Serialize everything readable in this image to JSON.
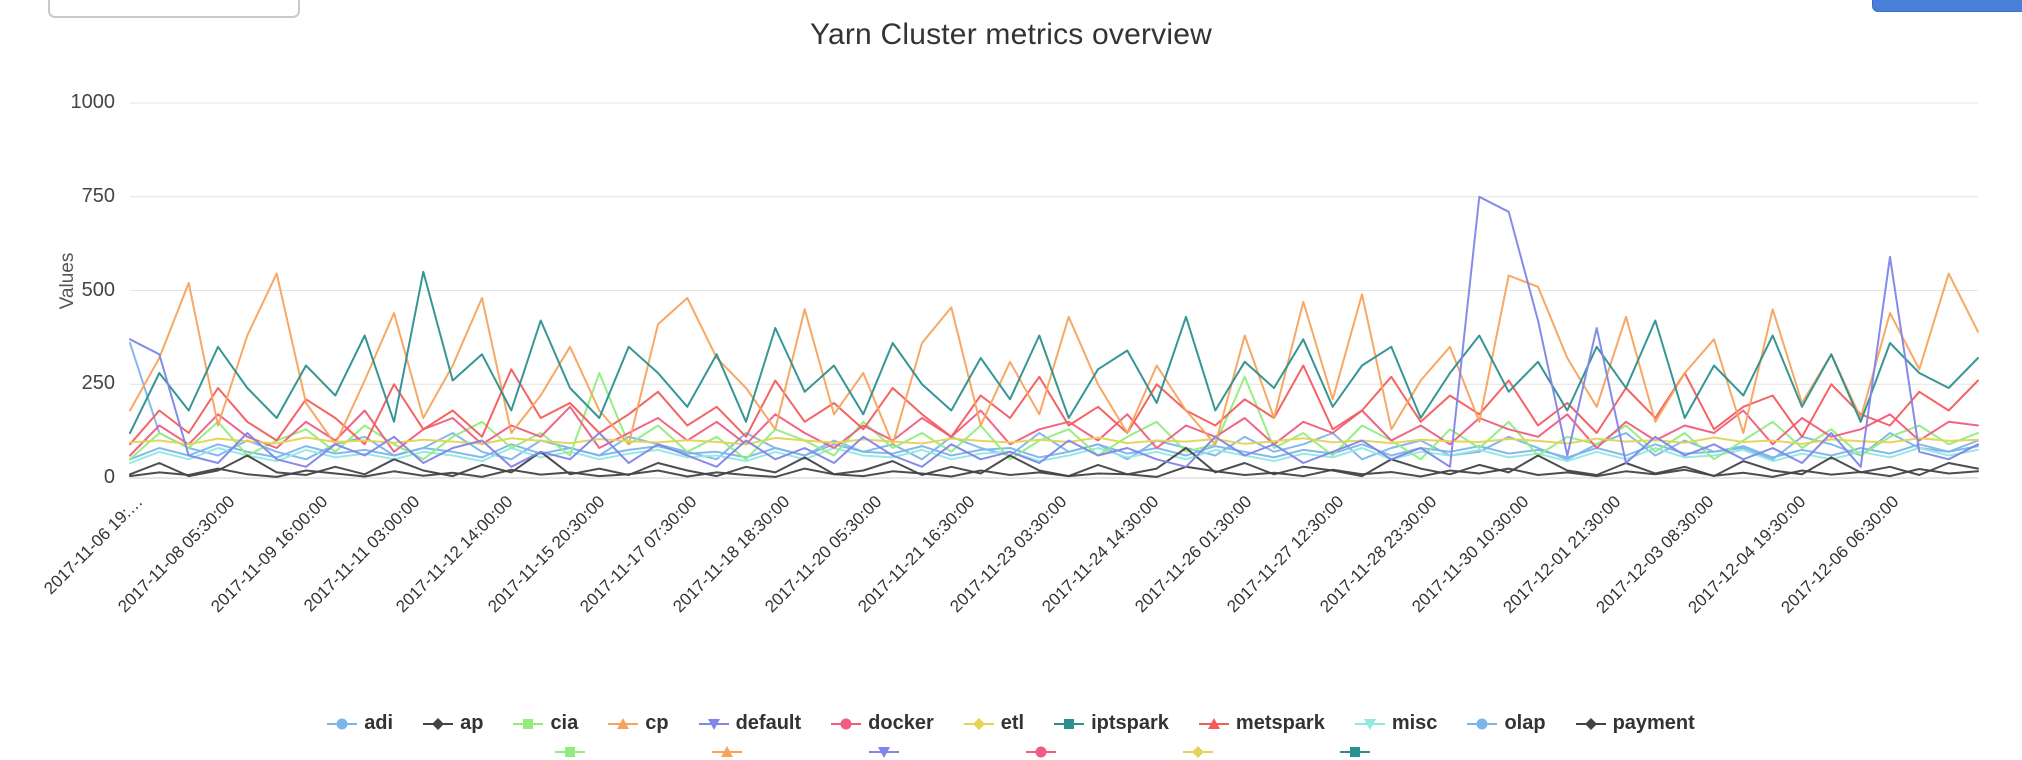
{
  "header": {
    "filter_value": "",
    "button_label": "",
    "button_color": "#4a80d9"
  },
  "chart_data": {
    "type": "line",
    "title": "Yarn Cluster metrics overview",
    "ylabel": "Values",
    "ylim": [
      0,
      1000
    ],
    "y_ticks": [
      0,
      250,
      500,
      750,
      1000
    ],
    "grid": true,
    "legend_position": "bottom",
    "x_tick_labels": [
      "2017-11-06 19:…",
      "2017-11-08 05:30:00",
      "2017-11-09 16:00:00",
      "2017-11-11 03:00:00",
      "2017-11-12 14:00:00",
      "2017-11-15 20:30:00",
      "2017-11-17 07:30:00",
      "2017-11-18 18:30:00",
      "2017-11-20 05:30:00",
      "2017-11-21 16:30:00",
      "2017-11-23 03:30:00",
      "2017-11-24 14:30:00",
      "2017-11-26 01:30:00",
      "2017-11-27 12:30:00",
      "2017-11-28 23:30:00",
      "2017-11-30 10:30:00",
      "2017-12-01 21:30:00",
      "2017-12-03 08:30:00",
      "2017-12-04 19:30:00",
      "2017-12-06 06:30:00"
    ],
    "series": [
      {
        "name": "adi",
        "color": "#7cb5ec",
        "marker": "circle",
        "values": [
          360,
          120,
          80,
          60,
          100,
          70,
          50,
          90,
          110,
          60,
          80,
          120,
          70,
          50,
          100,
          80,
          60,
          110,
          90,
          70,
          50,
          120,
          80,
          60,
          100,
          70,
          90,
          50,
          110,
          80,
          60,
          120,
          70,
          90,
          50,
          100,
          80,
          60,
          110,
          70,
          90,
          120,
          50,
          80,
          100,
          60,
          70,
          110,
          80,
          50,
          90,
          120,
          60,
          100,
          70,
          80,
          50,
          110,
          90,
          60,
          120,
          80,
          70,
          100
        ]
      },
      {
        "name": "ap",
        "color": "#434348",
        "marker": "diamond",
        "values": [
          10,
          40,
          5,
          20,
          60,
          15,
          8,
          30,
          10,
          50,
          20,
          5,
          35,
          15,
          70,
          10,
          25,
          8,
          40,
          20,
          5,
          30,
          15,
          55,
          10,
          20,
          45,
          8,
          30,
          12,
          60,
          20,
          5,
          35,
          10,
          25,
          80,
          15,
          40,
          10,
          30,
          20,
          5,
          50,
          25,
          10,
          35,
          15,
          60,
          20,
          8,
          40,
          12,
          30,
          5,
          45,
          20,
          10,
          55,
          15,
          30,
          8,
          40,
          25
        ]
      },
      {
        "name": "cia",
        "color": "#90ed7d",
        "marker": "square",
        "values": [
          50,
          120,
          80,
          150,
          60,
          100,
          130,
          70,
          140,
          90,
          50,
          110,
          150,
          80,
          120,
          60,
          280,
          90,
          140,
          70,
          110,
          50,
          130,
          100,
          60,
          150,
          80,
          120,
          70,
          140,
          50,
          100,
          130,
          60,
          110,
          150,
          70,
          90,
          270,
          80,
          120,
          60,
          140,
          100,
          50,
          130,
          80,
          150,
          60,
          110,
          90,
          140,
          70,
          120,
          50,
          100,
          150,
          80,
          130,
          60,
          110,
          140,
          90,
          120
        ]
      },
      {
        "name": "cp",
        "color": "#f7a35c",
        "marker": "triangle",
        "values": [
          180,
          320,
          520,
          140,
          380,
          545,
          200,
          90,
          260,
          440,
          160,
          300,
          480,
          120,
          220,
          350,
          180,
          90,
          410,
          480,
          320,
          240,
          130,
          450,
          170,
          280,
          90,
          360,
          455,
          140,
          310,
          170,
          430,
          250,
          120,
          300,
          180,
          90,
          380,
          160,
          470,
          210,
          490,
          130,
          260,
          350,
          150,
          540,
          510,
          320,
          190,
          430,
          150,
          280,
          370,
          120,
          450,
          200,
          330,
          160,
          440,
          290,
          545,
          390
        ]
      },
      {
        "name": "default",
        "color": "#8085e9",
        "marker": "triangle-down",
        "values": [
          370,
          330,
          60,
          40,
          120,
          50,
          30,
          90,
          60,
          110,
          40,
          80,
          100,
          30,
          70,
          50,
          120,
          40,
          90,
          60,
          30,
          100,
          50,
          80,
          40,
          110,
          60,
          30,
          90,
          50,
          70,
          40,
          100,
          60,
          80,
          50,
          30,
          110,
          60,
          90,
          40,
          70,
          100,
          50,
          80,
          30,
          750,
          710,
          420,
          60,
          400,
          40,
          110,
          60,
          90,
          50,
          80,
          40,
          120,
          30,
          590,
          70,
          50,
          90
        ]
      },
      {
        "name": "docker",
        "color": "#f15c80",
        "marker": "circle",
        "values": [
          60,
          140,
          90,
          170,
          110,
          80,
          150,
          100,
          180,
          70,
          130,
          160,
          90,
          140,
          110,
          190,
          80,
          120,
          160,
          100,
          150,
          90,
          170,
          120,
          80,
          140,
          100,
          160,
          110,
          180,
          90,
          130,
          150,
          100,
          170,
          80,
          140,
          110,
          160,
          90,
          150,
          120,
          180,
          100,
          140,
          90,
          160,
          130,
          110,
          170,
          80,
          150,
          100,
          140,
          120,
          180,
          90,
          160,
          110,
          130,
          170,
          100,
          150,
          140
        ]
      },
      {
        "name": "etl",
        "color": "#e4d354",
        "marker": "diamond",
        "values": [
          95,
          100,
          90,
          105,
          98,
          92,
          108,
          96,
          100,
          94,
          102,
          97,
          91,
          106,
          99,
          93,
          104,
          98,
          95,
          101,
          96,
          90,
          107,
          100,
          94,
          103,
          97,
          92,
          105,
          99,
          95,
          102,
          96,
          108,
          93,
          100,
          97,
          104,
          91,
          98,
          106,
          95,
          100,
          93,
          102,
          98,
          96,
          104,
          99,
          92,
          105,
          97,
          101,
          94,
          108,
          96,
          100,
          91,
          103,
          98,
          95,
          106,
          99,
          102
        ]
      },
      {
        "name": "iptspark",
        "color": "#2b908f",
        "marker": "square",
        "values": [
          120,
          280,
          180,
          350,
          240,
          160,
          300,
          220,
          380,
          150,
          550,
          260,
          330,
          180,
          420,
          240,
          160,
          350,
          280,
          190,
          330,
          150,
          400,
          230,
          300,
          170,
          360,
          250,
          180,
          320,
          210,
          380,
          160,
          290,
          340,
          200,
          430,
          180,
          310,
          240,
          370,
          190,
          300,
          350,
          160,
          280,
          380,
          230,
          310,
          180,
          350,
          240,
          420,
          160,
          300,
          220,
          380,
          190,
          330,
          150,
          360,
          280,
          240,
          320
        ]
      },
      {
        "name": "metspark",
        "color": "#f45b5b",
        "marker": "triangle",
        "values": [
          90,
          180,
          120,
          240,
          150,
          100,
          210,
          160,
          90,
          250,
          130,
          180,
          110,
          290,
          160,
          200,
          120,
          170,
          230,
          140,
          190,
          110,
          260,
          150,
          200,
          130,
          240,
          170,
          110,
          220,
          160,
          270,
          140,
          190,
          120,
          250,
          180,
          140,
          210,
          160,
          300,
          130,
          180,
          270,
          150,
          220,
          170,
          260,
          140,
          200,
          120,
          240,
          160,
          280,
          130,
          190,
          220,
          110,
          250,
          170,
          140,
          230,
          180,
          260
        ]
      },
      {
        "name": "misc",
        "color": "#91e8e1",
        "marker": "triangle-down",
        "values": [
          40,
          70,
          50,
          80,
          60,
          45,
          75,
          55,
          65,
          50,
          70,
          60,
          45,
          80,
          55,
          70,
          50,
          65,
          75,
          55,
          60,
          45,
          70,
          50,
          80,
          60,
          55,
          75,
          50,
          65,
          70,
          45,
          60,
          80,
          55,
          70,
          50,
          75,
          60,
          45,
          65,
          55,
          80,
          50,
          70,
          60,
          75,
          55,
          65,
          45,
          70,
          50,
          80,
          55,
          60,
          75,
          45,
          65,
          50,
          70,
          55,
          80,
          60,
          75
        ]
      },
      {
        "name": "olap",
        "color": "#7cb5ec",
        "marker": "circle",
        "values": [
          50,
          80,
          60,
          90,
          70,
          55,
          85,
          65,
          75,
          60,
          80,
          70,
          55,
          90,
          65,
          80,
          60,
          75,
          85,
          65,
          70,
          55,
          80,
          60,
          90,
          70,
          65,
          85,
          60,
          75,
          80,
          55,
          70,
          90,
          65,
          80,
          60,
          85,
          70,
          55,
          75,
          65,
          90,
          60,
          80,
          70,
          85,
          65,
          75,
          55,
          80,
          60,
          90,
          65,
          70,
          85,
          55,
          75,
          60,
          80,
          65,
          90,
          70,
          85
        ]
      },
      {
        "name": "payment",
        "color": "#434348",
        "marker": "diamond",
        "values": [
          5,
          15,
          8,
          25,
          10,
          3,
          20,
          12,
          4,
          18,
          6,
          14,
          3,
          22,
          9,
          15,
          5,
          10,
          20,
          4,
          15,
          8,
          3,
          25,
          10,
          5,
          18,
          12,
          4,
          20,
          8,
          15,
          5,
          12,
          10,
          3,
          30,
          18,
          8,
          14,
          5,
          22,
          10,
          16,
          4,
          20,
          12,
          25,
          8,
          15,
          5,
          18,
          10,
          22,
          6,
          14,
          3,
          20,
          9,
          16,
          5,
          24,
          12,
          18
        ]
      }
    ],
    "extra_legend_row": [
      {
        "label": "",
        "color": "#90ed7d",
        "marker": "square"
      },
      {
        "label": "",
        "color": "#f7a35c",
        "marker": "triangle"
      },
      {
        "label": "",
        "color": "#8085e9",
        "marker": "triangle-down"
      },
      {
        "label": "",
        "color": "#f15c80",
        "marker": "circle"
      },
      {
        "label": "",
        "color": "#e4d354",
        "marker": "diamond"
      },
      {
        "label": "",
        "color": "#2b908f",
        "marker": "square"
      }
    ]
  }
}
